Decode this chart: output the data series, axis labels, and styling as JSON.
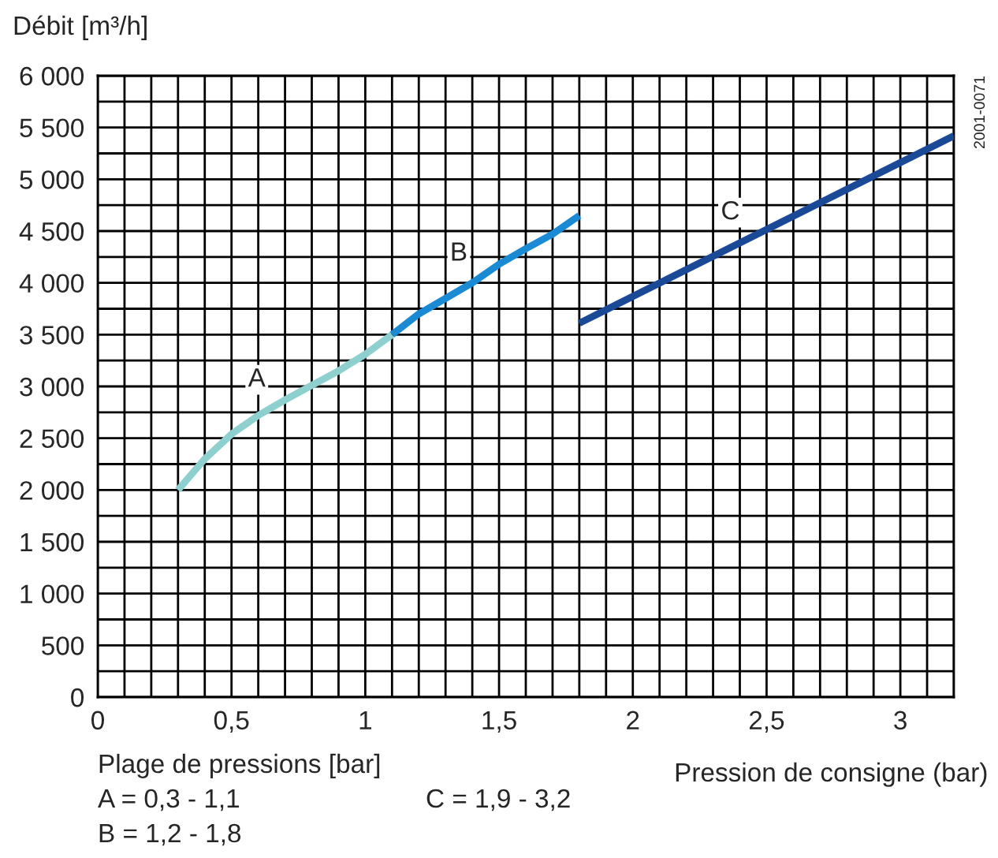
{
  "chart_data": {
    "type": "line",
    "xlabel": "Pression de consigne (bar)",
    "ylabel": "Débit [m³/h]",
    "series": [
      {
        "name": "A",
        "color": "#8ecfcf",
        "x": [
          0.3,
          0.4,
          0.5,
          0.6,
          0.7,
          0.8,
          0.9,
          1.0,
          1.1
        ],
        "values": [
          2000,
          2300,
          2540,
          2720,
          2870,
          3010,
          3150,
          3310,
          3500
        ]
      },
      {
        "name": "B",
        "color": "#1a8ad4",
        "x": [
          1.1,
          1.2,
          1.3,
          1.4,
          1.5,
          1.6,
          1.7,
          1.8
        ],
        "values": [
          3500,
          3700,
          3850,
          4000,
          4180,
          4330,
          4470,
          4650
        ]
      },
      {
        "name": "C",
        "color": "#1a4a96",
        "x": [
          1.8,
          3.2
        ],
        "values": [
          3610,
          5420
        ]
      }
    ],
    "xlim": [
      0,
      3.2
    ],
    "ylim": [
      0,
      6000
    ],
    "xticks": [
      0,
      {
        "value": 0.1,
        "label": null
      },
      {
        "value": 0.2,
        "label": null
      },
      {
        "value": 0.3,
        "label": null
      },
      {
        "value": 0.4,
        "label": null
      },
      {
        "value": 0.5,
        "label": "0,5"
      },
      {
        "value": 0.6,
        "label": null
      },
      {
        "value": 0.7,
        "label": null
      },
      {
        "value": 0.8,
        "label": null
      },
      {
        "value": 0.9,
        "label": null
      },
      1,
      {
        "value": 1.1,
        "label": null
      },
      {
        "value": 1.2,
        "label": null
      },
      {
        "value": 1.3,
        "label": null
      },
      {
        "value": 1.4,
        "label": null
      },
      {
        "value": 1.5,
        "label": "1,5"
      },
      {
        "value": 1.6,
        "label": null
      },
      {
        "value": 1.7,
        "label": null
      },
      {
        "value": 1.8,
        "label": null
      },
      {
        "value": 1.9,
        "label": null
      },
      2,
      {
        "value": 2.1,
        "label": null
      },
      {
        "value": 2.2,
        "label": null
      },
      {
        "value": 2.3,
        "label": null
      },
      {
        "value": 2.4,
        "label": null
      },
      {
        "value": 2.5,
        "label": "2,5"
      },
      {
        "value": 2.6,
        "label": null
      },
      {
        "value": 2.7,
        "label": null
      },
      {
        "value": 2.8,
        "label": null
      },
      {
        "value": 2.9,
        "label": null
      },
      3,
      {
        "value": 3.1,
        "label": null
      },
      {
        "value": 3.2,
        "label": null
      }
    ],
    "yticks": [
      0,
      {
        "value": 250,
        "label": null
      },
      500,
      {
        "value": 750,
        "label": null
      },
      {
        "value": 1000,
        "label": "1 000"
      },
      {
        "value": 1250,
        "label": null
      },
      {
        "value": 1500,
        "label": "1 500"
      },
      {
        "value": 1750,
        "label": null
      },
      {
        "value": 2000,
        "label": "2 000"
      },
      {
        "value": 2250,
        "label": null
      },
      {
        "value": 2500,
        "label": "2 500"
      },
      {
        "value": 2750,
        "label": null
      },
      {
        "value": 3000,
        "label": "3 000"
      },
      {
        "value": 3250,
        "label": null
      },
      {
        "value": 3500,
        "label": "3 500"
      },
      {
        "value": 3750,
        "label": null
      },
      {
        "value": 4000,
        "label": "4 000"
      },
      {
        "value": 4250,
        "label": null
      },
      {
        "value": 4500,
        "label": "4 500"
      },
      {
        "value": 4750,
        "label": null
      },
      {
        "value": 5000,
        "label": "5 000"
      },
      {
        "value": 5250,
        "label": null
      },
      {
        "value": 5500,
        "label": "5 500"
      },
      {
        "value": 5750,
        "label": null
      },
      {
        "value": 6000,
        "label": "6 000"
      }
    ],
    "grid": true,
    "legend": false,
    "marker": "none",
    "line_style": "solid",
    "annotations": [
      "Plage de pressions [bar]",
      "A = 0,3 - 1,1",
      "C = 1,9 - 3,2",
      "B = 1,2 - 1,8",
      "2001-0071"
    ]
  }
}
